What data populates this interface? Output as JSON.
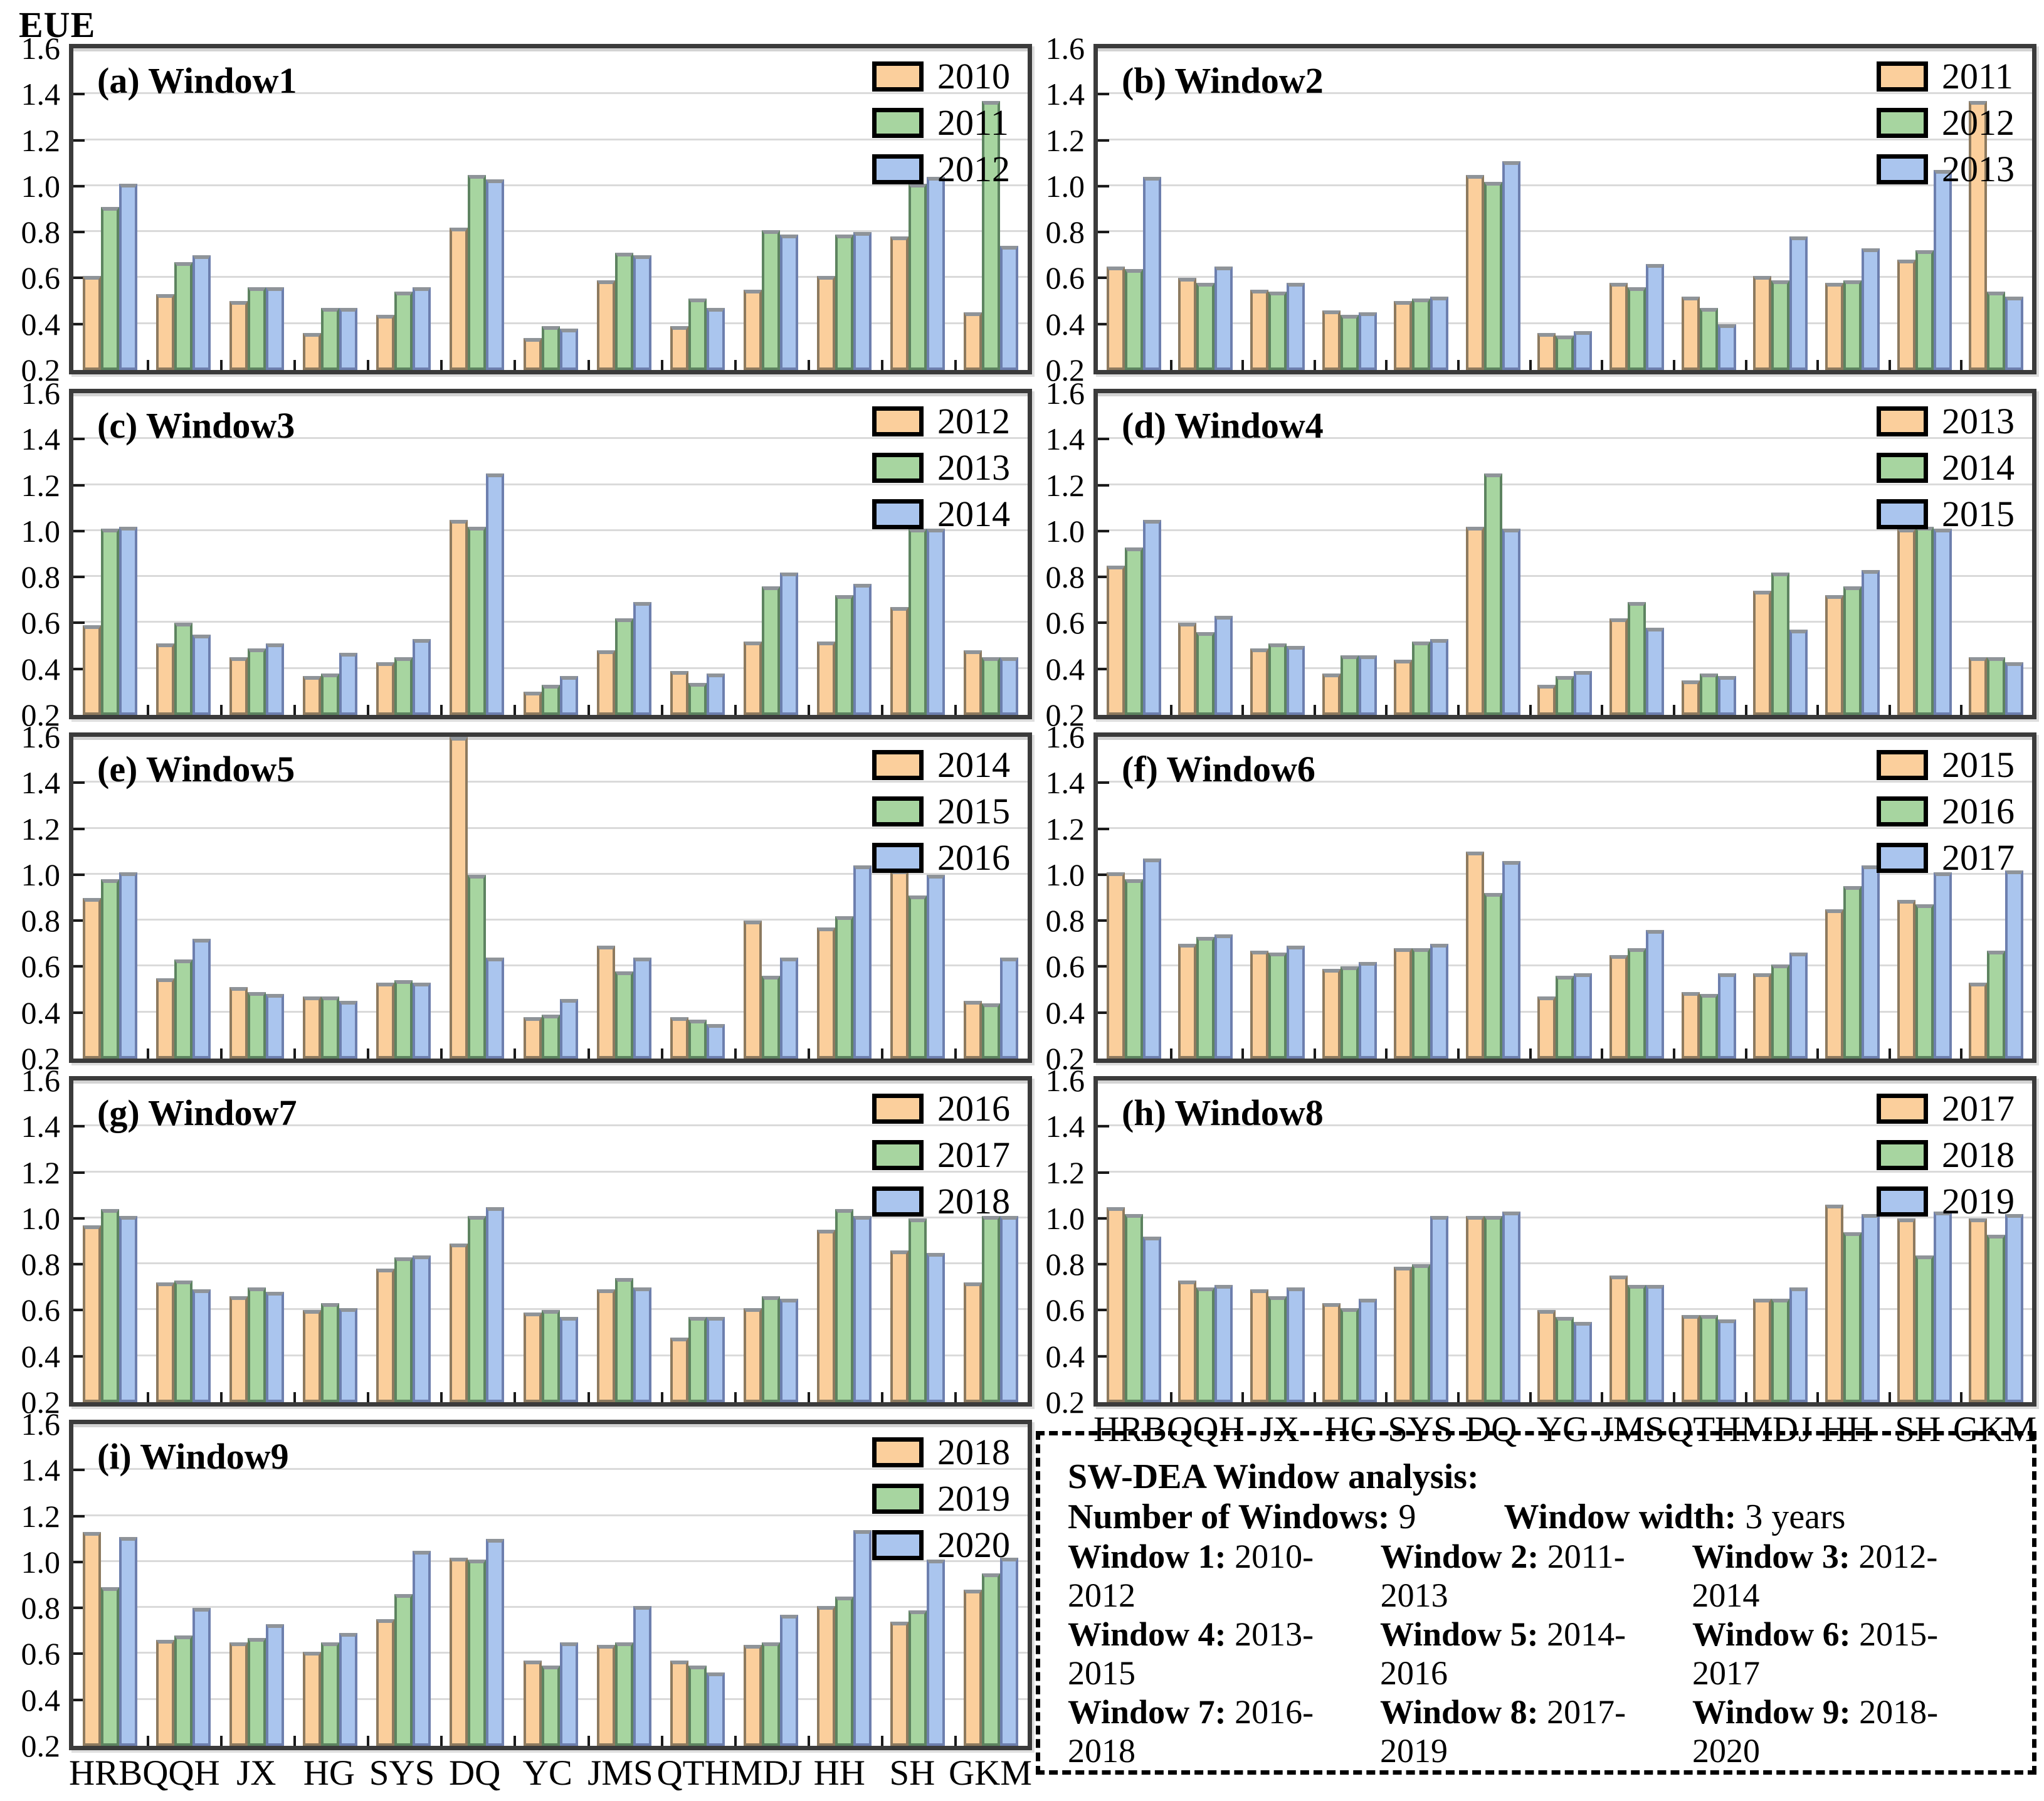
{
  "figure_title": "EUE",
  "chart_data": {
    "type": "bar",
    "ylabel": "EUE",
    "ylim": [
      0.2,
      1.6
    ],
    "yticks": [
      "0.2",
      "0.4",
      "0.6",
      "0.8",
      "1.0",
      "1.2",
      "1.4",
      "1.6"
    ],
    "grid": true,
    "legend_position": "top-right",
    "series_colors": [
      {
        "fill": "#FBCF9C",
        "border": "#8d7a5f"
      },
      {
        "fill": "#A7D5A0",
        "border": "#5d8360"
      },
      {
        "fill": "#AAC5EE",
        "border": "#6d7fae"
      }
    ],
    "categories": [
      "HRB",
      "QQH",
      "JX",
      "HG",
      "SYS",
      "DQ",
      "YC",
      "JMS",
      "QTH",
      "MDJ",
      "HH",
      "SH",
      "GKM"
    ],
    "panels": [
      {
        "id": "a",
        "label": "(a) Window1",
        "years": [
          "2010",
          "2011",
          "2012"
        ],
        "series": [
          {
            "name": "2010",
            "values": [
              0.61,
              0.53,
              0.5,
              0.36,
              0.44,
              0.82,
              0.34,
              0.59,
              0.39,
              0.55,
              0.61,
              0.78,
              0.45
            ]
          },
          {
            "name": "2011",
            "values": [
              0.91,
              0.67,
              0.56,
              0.47,
              0.54,
              1.05,
              0.39,
              0.71,
              0.51,
              0.81,
              0.79,
              1.01,
              1.37
            ]
          },
          {
            "name": "2012",
            "values": [
              1.01,
              0.7,
              0.56,
              0.47,
              0.56,
              1.03,
              0.38,
              0.7,
              0.47,
              0.79,
              0.8,
              1.04,
              0.74
            ]
          }
        ]
      },
      {
        "id": "b",
        "label": "(b) Window2",
        "years": [
          "2011",
          "2012",
          "2013"
        ],
        "series": [
          {
            "name": "2011",
            "values": [
              0.65,
              0.6,
              0.55,
              0.46,
              0.5,
              1.05,
              0.36,
              0.58,
              0.52,
              0.61,
              0.58,
              0.68,
              1.37
            ]
          },
          {
            "name": "2012",
            "values": [
              0.64,
              0.58,
              0.54,
              0.44,
              0.51,
              1.02,
              0.35,
              0.56,
              0.47,
              0.59,
              0.59,
              0.72,
              0.54
            ]
          },
          {
            "name": "2013",
            "values": [
              1.04,
              0.65,
              0.58,
              0.45,
              0.52,
              1.11,
              0.37,
              0.66,
              0.4,
              0.78,
              0.73,
              1.07,
              0.52
            ]
          }
        ]
      },
      {
        "id": "c",
        "label": "(c) Window3",
        "years": [
          "2012",
          "2013",
          "2014"
        ],
        "series": [
          {
            "name": "2012",
            "values": [
              0.59,
              0.51,
              0.45,
              0.37,
              0.43,
              1.05,
              0.3,
              0.48,
              0.39,
              0.52,
              0.52,
              0.67,
              0.48
            ]
          },
          {
            "name": "2013",
            "values": [
              1.01,
              0.6,
              0.49,
              0.38,
              0.45,
              1.02,
              0.33,
              0.62,
              0.34,
              0.76,
              0.72,
              1.01,
              0.45
            ]
          },
          {
            "name": "2014",
            "values": [
              1.02,
              0.55,
              0.51,
              0.47,
              0.53,
              1.25,
              0.37,
              0.69,
              0.38,
              0.82,
              0.77,
              1.01,
              0.45
            ]
          }
        ]
      },
      {
        "id": "d",
        "label": "(d) Window4",
        "years": [
          "2013",
          "2014",
          "2015"
        ],
        "series": [
          {
            "name": "2013",
            "values": [
              0.85,
              0.6,
              0.49,
              0.38,
              0.44,
              1.02,
              0.33,
              0.62,
              0.35,
              0.74,
              0.72,
              1.01,
              0.45
            ]
          },
          {
            "name": "2014",
            "values": [
              0.93,
              0.56,
              0.51,
              0.46,
              0.52,
              1.25,
              0.37,
              0.69,
              0.38,
              0.82,
              0.76,
              1.02,
              0.45
            ]
          },
          {
            "name": "2015",
            "values": [
              1.05,
              0.63,
              0.5,
              0.46,
              0.53,
              1.01,
              0.39,
              0.58,
              0.37,
              0.57,
              0.83,
              1.01,
              0.43
            ]
          }
        ]
      },
      {
        "id": "e",
        "label": "(e) Window5",
        "years": [
          "2014",
          "2015",
          "2016"
        ],
        "series": [
          {
            "name": "2014",
            "values": [
              0.9,
              0.55,
              0.51,
              0.47,
              0.53,
              1.6,
              0.38,
              0.69,
              0.38,
              0.8,
              0.77,
              1.02,
              0.45
            ]
          },
          {
            "name": "2015",
            "values": [
              0.98,
              0.63,
              0.49,
              0.47,
              0.54,
              1.0,
              0.39,
              0.58,
              0.37,
              0.56,
              0.82,
              0.91,
              0.44
            ]
          },
          {
            "name": "2016",
            "values": [
              1.01,
              0.72,
              0.48,
              0.45,
              0.53,
              0.64,
              0.46,
              0.64,
              0.35,
              0.64,
              1.04,
              1.0,
              0.64
            ]
          }
        ]
      },
      {
        "id": "f",
        "label": "(f) Window6",
        "years": [
          "2015",
          "2016",
          "2017"
        ],
        "series": [
          {
            "name": "2015",
            "values": [
              1.01,
              0.7,
              0.67,
              0.59,
              0.68,
              1.1,
              0.47,
              0.65,
              0.49,
              0.57,
              0.85,
              0.89,
              0.53
            ]
          },
          {
            "name": "2016",
            "values": [
              0.98,
              0.73,
              0.66,
              0.6,
              0.68,
              0.92,
              0.56,
              0.68,
              0.48,
              0.61,
              0.95,
              0.87,
              0.67
            ]
          },
          {
            "name": "2017",
            "values": [
              1.07,
              0.74,
              0.69,
              0.62,
              0.7,
              1.06,
              0.57,
              0.76,
              0.57,
              0.66,
              1.04,
              1.01,
              1.02
            ]
          }
        ]
      },
      {
        "id": "g",
        "label": "(g) Window7",
        "years": [
          "2016",
          "2017",
          "2018"
        ],
        "series": [
          {
            "name": "2016",
            "values": [
              0.97,
              0.72,
              0.66,
              0.6,
              0.78,
              0.89,
              0.59,
              0.69,
              0.48,
              0.61,
              0.95,
              0.86,
              0.72
            ]
          },
          {
            "name": "2017",
            "values": [
              1.04,
              0.73,
              0.7,
              0.63,
              0.83,
              1.01,
              0.6,
              0.74,
              0.57,
              0.66,
              1.04,
              1.0,
              1.01
            ]
          },
          {
            "name": "2018",
            "values": [
              1.01,
              0.69,
              0.68,
              0.61,
              0.84,
              1.05,
              0.57,
              0.7,
              0.57,
              0.65,
              1.01,
              0.85,
              1.01
            ]
          }
        ]
      },
      {
        "id": "h",
        "label": "(h) Window8",
        "years": [
          "2017",
          "2018",
          "2019"
        ],
        "series": [
          {
            "name": "2017",
            "values": [
              1.05,
              0.73,
              0.69,
              0.63,
              0.79,
              1.01,
              0.6,
              0.75,
              0.58,
              0.65,
              1.06,
              1.0,
              1.0
            ]
          },
          {
            "name": "2018",
            "values": [
              1.02,
              0.7,
              0.66,
              0.61,
              0.8,
              1.01,
              0.57,
              0.71,
              0.58,
              0.65,
              0.94,
              0.84,
              0.93
            ]
          },
          {
            "name": "2019",
            "values": [
              0.92,
              0.71,
              0.7,
              0.65,
              1.01,
              1.03,
              0.55,
              0.71,
              0.56,
              0.7,
              1.02,
              1.03,
              1.02
            ]
          }
        ]
      },
      {
        "id": "i",
        "label": "(i) Window9",
        "years": [
          "2018",
          "2019",
          "2020"
        ],
        "series": [
          {
            "name": "2018",
            "values": [
              1.13,
              0.66,
              0.65,
              0.61,
              0.75,
              1.02,
              0.57,
              0.64,
              0.57,
              0.64,
              0.81,
              0.74,
              0.88
            ]
          },
          {
            "name": "2019",
            "values": [
              0.89,
              0.68,
              0.67,
              0.65,
              0.86,
              1.01,
              0.55,
              0.65,
              0.55,
              0.65,
              0.85,
              0.79,
              0.95
            ]
          },
          {
            "name": "2020",
            "values": [
              1.11,
              0.8,
              0.73,
              0.69,
              1.05,
              1.1,
              0.65,
              0.81,
              0.52,
              0.77,
              1.14,
              1.01,
              1.02
            ]
          }
        ]
      }
    ]
  },
  "info_box": {
    "title": "SW-DEA Window analysis:",
    "num_windows_label": "Number of Windows:",
    "num_windows_value": "9",
    "width_label": "Window width:",
    "width_value": "3 years",
    "windows": [
      {
        "label": "Window 1:",
        "range": "2010-2012"
      },
      {
        "label": "Window 2:",
        "range": "2011-2013"
      },
      {
        "label": "Window 3:",
        "range": "2012-2014"
      },
      {
        "label": "Window 4:",
        "range": "2013-2015"
      },
      {
        "label": "Window 5:",
        "range": "2014-2016"
      },
      {
        "label": "Window 6:",
        "range": "2015-2017"
      },
      {
        "label": "Window 7:",
        "range": "2016-2018"
      },
      {
        "label": "Window 8:",
        "range": "2017-2019"
      },
      {
        "label": "Window 9:",
        "range": "2018-2020"
      }
    ]
  }
}
